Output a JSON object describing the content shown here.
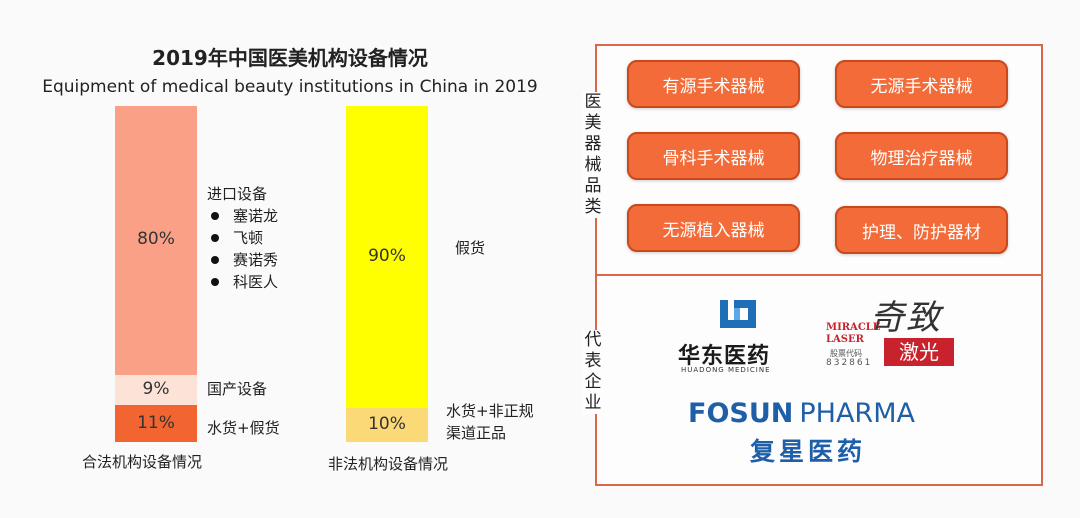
{
  "chart_data": {
    "type": "bar",
    "title": "2019年中国医美机构设备情况",
    "subtitle": "Equipment of medical beauty institutions in China in 2019",
    "bars": [
      {
        "category": "合法机构设备情况",
        "segments": [
          {
            "name": "进口设备",
            "value": 80,
            "label": "80%",
            "color": "#f9a086",
            "items": [
              "塞诺龙",
              "飞顿",
              "赛诺秀",
              "科医人"
            ]
          },
          {
            "name": "国产设备",
            "value": 9,
            "label": "9%",
            "color": "#fde2d8"
          },
          {
            "name": "水货+假货",
            "value": 11,
            "label": "11%",
            "color": "#f26430"
          }
        ]
      },
      {
        "category": "非法机构设备情况",
        "segments": [
          {
            "name": "假货",
            "value": 90,
            "label": "90%",
            "color": "#ffff00"
          },
          {
            "name": "水货+非正规渠道正品",
            "value": 10,
            "label": "10%",
            "color": "#fcd977"
          }
        ]
      }
    ],
    "ylim": [
      0,
      100
    ]
  },
  "panel": {
    "categories_label": "医美器械品类",
    "categories": [
      "有源手术器械",
      "无源手术器械",
      "骨科手术器械",
      "物理治疗器械",
      "无源植入器械",
      "护理、防护器材"
    ],
    "companies_label": "代表企业",
    "companies": {
      "huadong": {
        "name": "华东医药",
        "english": "HUADONG MEDICINE"
      },
      "miracle": {
        "english_1": "MIRACLE",
        "english_2": "LASER",
        "stock_label": "股票代码",
        "stock_code": "832861",
        "chinese_top": "奇致",
        "chinese_bottom": "激光"
      },
      "fosun": {
        "english_1": "FOSUN",
        "english_2": "PHARMA",
        "chinese": "复星医药"
      }
    }
  },
  "colors": {
    "accent": "#f26b38",
    "border": "#d9674a"
  }
}
